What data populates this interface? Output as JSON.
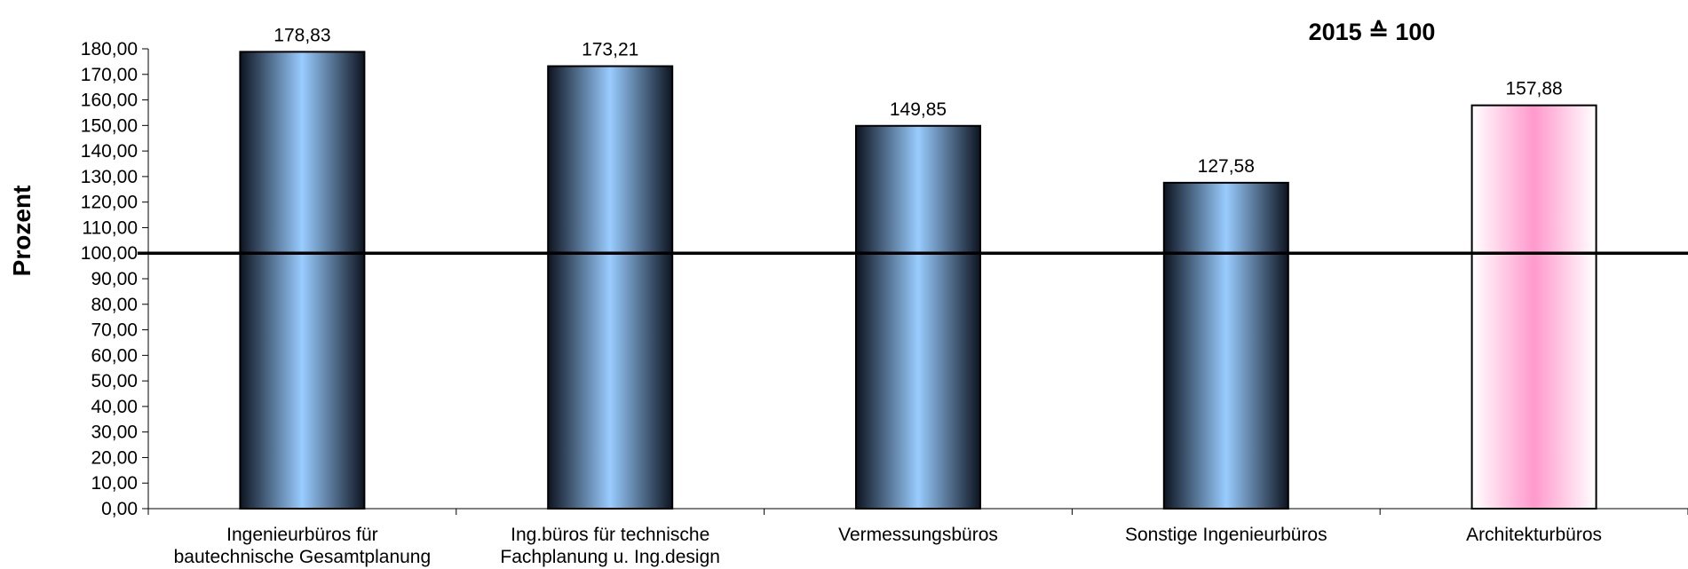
{
  "chart_data": {
    "type": "bar",
    "categories": [
      [
        "Ingenieurbüros für",
        "bautechnische Gesamtplanung"
      ],
      [
        "Ing.büros für technische",
        "Fachplanung u. Ing.design"
      ],
      [
        "Vermessungsbüros"
      ],
      [
        "Sonstige Ingenieurbüros"
      ],
      [
        "Architekturbüros"
      ]
    ],
    "values": [
      178.83,
      173.21,
      149.85,
      127.58,
      157.88
    ],
    "value_labels": [
      "178,83",
      "173,21",
      "149,85",
      "127,58",
      "157,88"
    ],
    "bar_styles": [
      "blue",
      "blue",
      "blue",
      "blue",
      "pink"
    ],
    "colors": {
      "blue_edge": "#0d1420",
      "blue_center": "#99ccff",
      "pink_center": "#ff99cc",
      "pink_edge": "#ffffff",
      "bar_outline": "#000000"
    },
    "ylabel": "Prozent",
    "ylim": [
      0,
      180
    ],
    "ytick_step": 10,
    "ytick_labels": [
      "0,00",
      "10,00",
      "20,00",
      "30,00",
      "40,00",
      "50,00",
      "60,00",
      "70,00",
      "80,00",
      "90,00",
      "100,00",
      "110,00",
      "120,00",
      "130,00",
      "140,00",
      "150,00",
      "160,00",
      "170,00",
      "180,00"
    ],
    "reference_line": 100,
    "annotation": "2015 ≙ 100",
    "title": "",
    "xlabel": "",
    "grid": false,
    "legend": "none"
  }
}
